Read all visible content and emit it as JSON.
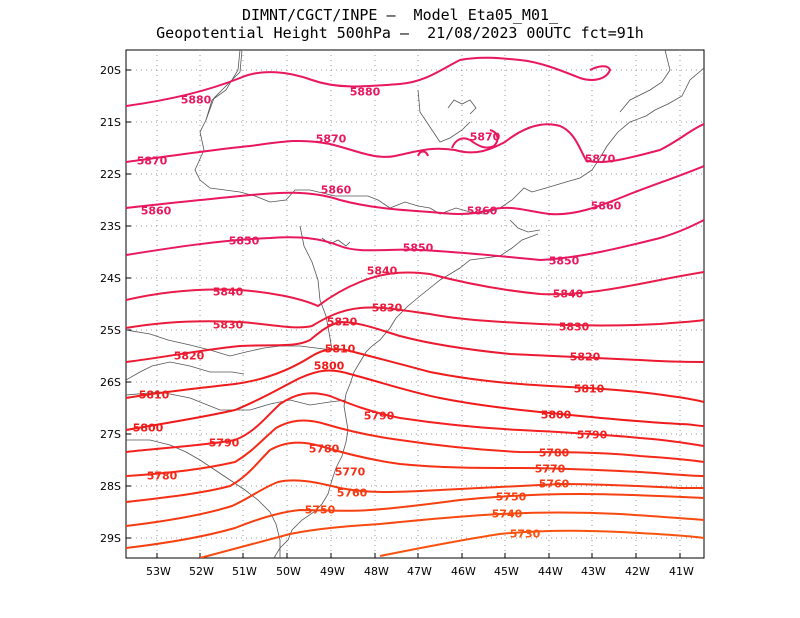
{
  "title": {
    "line1": "DIMNT/CGCT/INPE –  Model Eta05_M01_",
    "line2": "Geopotential Height 500hPa –  21/08/2023 00UTC fct=91h"
  },
  "axes": {
    "lat_labels": [
      "20S",
      "21S",
      "22S",
      "23S",
      "24S",
      "25S",
      "26S",
      "27S",
      "28S",
      "29S"
    ],
    "lon_labels": [
      "53W",
      "52W",
      "51W",
      "50W",
      "49W",
      "48W",
      "47W",
      "46W",
      "45W",
      "44W",
      "43W",
      "42W",
      "41W"
    ]
  },
  "contours": [
    {
      "value": 5880,
      "color": "#e8175f",
      "label": "5880"
    },
    {
      "value": 5870,
      "color": "#e8175f",
      "label": "5870"
    },
    {
      "value": 5860,
      "color": "#e8175f",
      "label": "5860"
    },
    {
      "value": 5850,
      "color": "#e8175f",
      "label": "5850"
    },
    {
      "value": 5840,
      "color": "#ea1a4a",
      "label": "5840"
    },
    {
      "value": 5830,
      "color": "#ea1c3c",
      "label": "5830"
    },
    {
      "value": 5820,
      "color": "#ec1a30",
      "label": "5820"
    },
    {
      "value": 5810,
      "color": "#ef1c1c",
      "label": "5810"
    },
    {
      "value": 5800,
      "color": "#f01a1a",
      "label": "5800"
    },
    {
      "value": 5790,
      "color": "#f42020",
      "label": "5790"
    },
    {
      "value": 5780,
      "color": "#f52a18",
      "label": "5780"
    },
    {
      "value": 5770,
      "color": "#f53014",
      "label": "5770"
    },
    {
      "value": 5760,
      "color": "#f53a12",
      "label": "5760"
    },
    {
      "value": 5750,
      "color": "#f74010",
      "label": "5750"
    },
    {
      "value": 5740,
      "color": "#f84a10",
      "label": "5740"
    },
    {
      "value": 5730,
      "color": "#f9520e",
      "label": "5730"
    }
  ]
}
